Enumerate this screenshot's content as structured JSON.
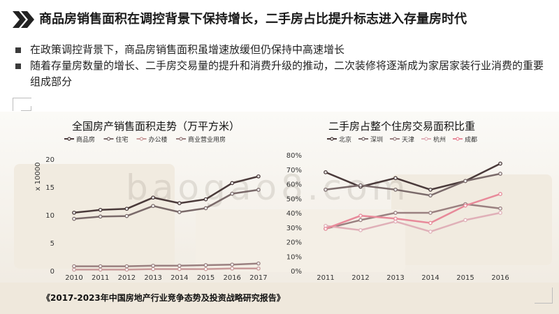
{
  "header": {
    "title": "商品房销售面积在调控背景下保持增长，二手房占比提升标志进入存量房时代"
  },
  "bullets": [
    "在政策调控背景下，商品房销售面积虽增速放缓但仍保持中高速增长",
    "随着存量房数量的增长、二手房交易量的提升和消费升级的推动，二次装修将逐渐成为家居家装行业消费的重要组成部分"
  ],
  "watermark": "baogao8.com",
  "source": "《2017-2023年中国房地产行业竞争态势及投资战略研究报告》",
  "colors": {
    "series_1": "#4a3a3a",
    "series_2": "#7a6a6a",
    "series_3": "#c89a9a",
    "series_4": "#9a8080",
    "series_5": "#e88a9a"
  },
  "chart_data": [
    {
      "type": "line",
      "title": "全国房产销售面积走势（万平方米）",
      "ylabel": "x 10000",
      "x": [
        "2010",
        "2011",
        "2012",
        "2013",
        "2014",
        "2015",
        "2016",
        "2017"
      ],
      "yticks": [
        "0",
        "5",
        "10",
        "15",
        "20"
      ],
      "ylim": [
        0,
        20
      ],
      "legend_position": "top",
      "series": [
        {
          "name": "商品房",
          "color": "#4a3a3a",
          "values": [
            10.4,
            10.9,
            11.1,
            13.1,
            12.1,
            12.8,
            15.7,
            16.9
          ]
        },
        {
          "name": "住宅",
          "color": "#7a6a6a",
          "values": [
            9.3,
            9.7,
            9.8,
            11.6,
            10.5,
            11.2,
            13.8,
            14.5
          ]
        },
        {
          "name": "办公楼",
          "color": "#c89a9a",
          "values": [
            0.2,
            0.2,
            0.2,
            0.3,
            0.3,
            0.3,
            0.4,
            0.4
          ]
        },
        {
          "name": "商业营业用房",
          "color": "#9a8080",
          "values": [
            0.8,
            0.8,
            0.8,
            0.9,
            0.9,
            1.0,
            1.1,
            1.3
          ]
        }
      ]
    },
    {
      "type": "line",
      "title": "二手房占整个住房交易面积比重",
      "x": [
        "2011",
        "2012",
        "2013",
        "2014",
        "2015",
        "2016"
      ],
      "yticks": [
        "0%",
        "10%",
        "20%",
        "30%",
        "40%",
        "50%",
        "60%",
        "70%",
        "80%"
      ],
      "ylim": [
        0,
        80
      ],
      "legend_position": "top",
      "series": [
        {
          "name": "北京",
          "color": "#4a3a3a",
          "values": [
            68,
            58,
            64,
            56,
            62,
            74
          ]
        },
        {
          "name": "深圳",
          "color": "#7a6a6a",
          "values": [
            56,
            59,
            56,
            52,
            62,
            67
          ]
        },
        {
          "name": "天津",
          "color": "#9a8080",
          "values": [
            29,
            35,
            40,
            40,
            46,
            43
          ]
        },
        {
          "name": "杭州",
          "color": "#e0b0b8",
          "values": [
            31,
            28,
            34,
            27,
            35,
            40
          ]
        },
        {
          "name": "成都",
          "color": "#e88a9a",
          "values": [
            29,
            38,
            36,
            33,
            45,
            53
          ]
        }
      ]
    }
  ]
}
